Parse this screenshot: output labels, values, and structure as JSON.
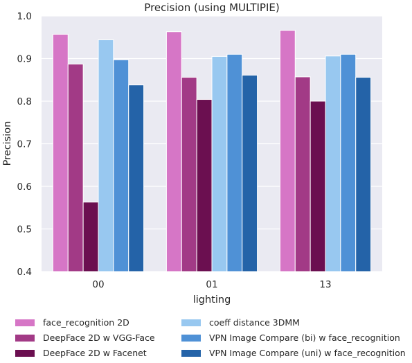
{
  "chart_data": {
    "type": "bar",
    "title": "Precision (using MULTIPIE)",
    "xlabel": "lighting",
    "ylabel": "Precision",
    "ylim": [
      0.4,
      1.0
    ],
    "yticks": [
      "0.4",
      "0.5",
      "0.6",
      "0.7",
      "0.8",
      "0.9",
      "1.0"
    ],
    "categories": [
      "00",
      "01",
      "13"
    ],
    "grid": true,
    "legend_position": "bottom",
    "series": [
      {
        "name": "face_recognition 2D",
        "color": "#d676c6",
        "values": [
          0.957,
          0.963,
          0.966
        ]
      },
      {
        "name": "DeepFace 2D w VGG-Face",
        "color": "#a23a86",
        "values": [
          0.887,
          0.856,
          0.857
        ]
      },
      {
        "name": "DeepFace 2D w Facenet",
        "color": "#6b0f50",
        "values": [
          0.563,
          0.804,
          0.8
        ]
      },
      {
        "name": "coeff distance 3DMM",
        "color": "#98c8f0",
        "values": [
          0.944,
          0.905,
          0.906
        ]
      },
      {
        "name": "VPN Image Compare (bi) w face_recognition",
        "color": "#4f91d6",
        "values": [
          0.897,
          0.91,
          0.91
        ]
      },
      {
        "name": "VPN Image Compare (uni) w face_recognition",
        "color": "#2463a8",
        "values": [
          0.838,
          0.861,
          0.856
        ]
      }
    ]
  }
}
